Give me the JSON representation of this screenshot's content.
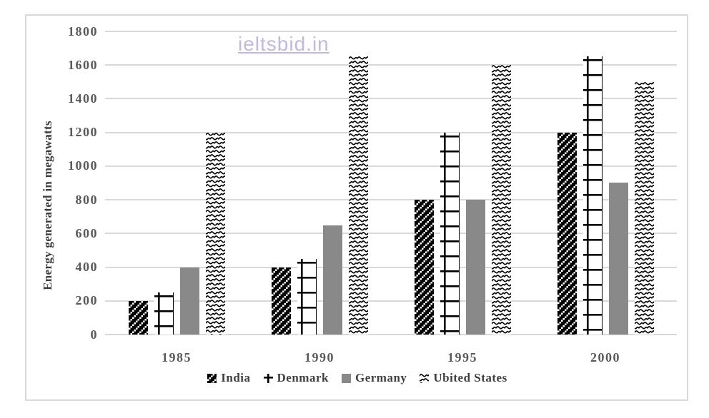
{
  "watermark": {
    "text": "ieltsbid.in",
    "color": "#c2b8e0"
  },
  "chart_data": {
    "type": "bar",
    "title": "",
    "ylabel": "Energy generated in megawatts",
    "xlabel": "",
    "categories": [
      "1985",
      "1990",
      "1995",
      "2000"
    ],
    "series": [
      {
        "name": "India",
        "pattern": "checker",
        "values": [
          200,
          400,
          800,
          1200
        ]
      },
      {
        "name": "Denmark",
        "pattern": "grid",
        "values": [
          250,
          450,
          1200,
          1650
        ]
      },
      {
        "name": "Germany",
        "pattern": "solid",
        "color": "#898989",
        "values": [
          400,
          650,
          800,
          900
        ]
      },
      {
        "name": "Ubited States",
        "pattern": "wave",
        "values": [
          1200,
          1650,
          1600,
          1500
        ]
      }
    ],
    "ylim": [
      0,
      1800
    ],
    "ytick_step": 200,
    "yticks": [
      "0",
      "200",
      "400",
      "600",
      "800",
      "1000",
      "1200",
      "1400",
      "1600",
      "1800"
    ],
    "grid": true,
    "legend_position": "bottom"
  },
  "style": {
    "grid_color": "#d9d9d9",
    "border_color": "#d9d9d9",
    "tick_label_color": "#595959",
    "axis_title_color": "#3d3d3d",
    "legend_text_color": "#404040",
    "pattern_ink": "#000000",
    "pattern_bg": "#ffffff"
  }
}
